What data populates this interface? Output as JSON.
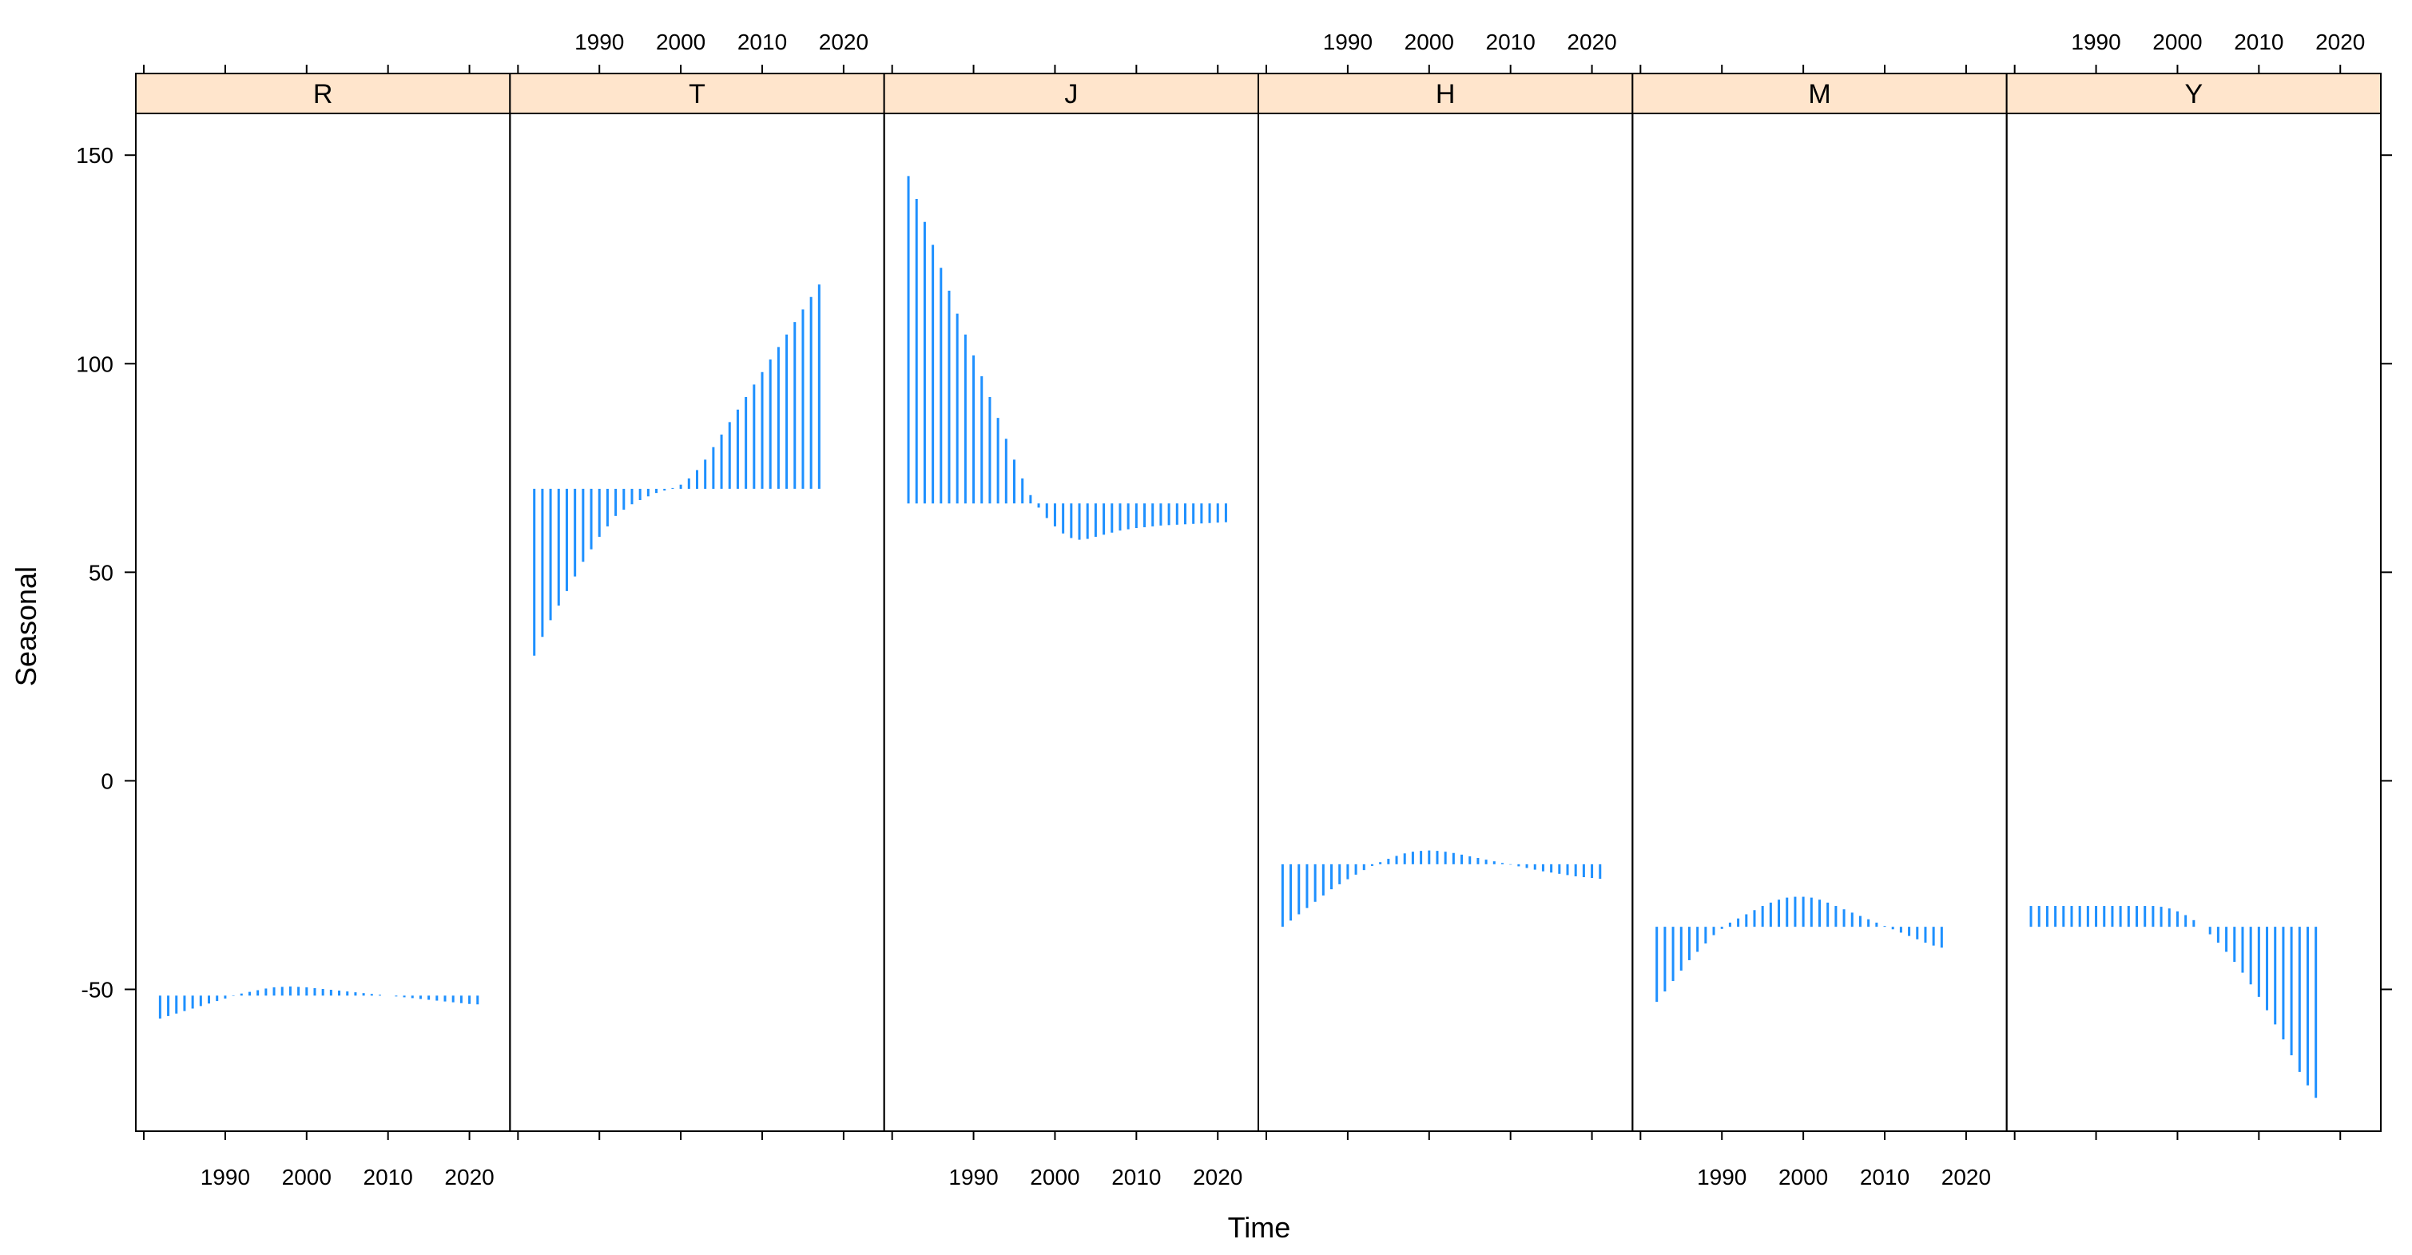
{
  "chart_data": {
    "type": "line",
    "ylabel": "Seasonal",
    "xlabel": "Time",
    "ylim": [
      -84,
      160
    ],
    "xlim": [
      1980,
      2024
    ],
    "y_ticks": [
      -50,
      0,
      50,
      100,
      150
    ],
    "x_ticks": [
      1990,
      2000,
      2010,
      2020
    ],
    "start_year": 1982,
    "panel_order": [
      "R",
      "T",
      "J",
      "H",
      "M",
      "Y"
    ],
    "strip_color": "#ffe5cc",
    "line_color": "#1e90ff",
    "panels": [
      {
        "name": "R",
        "midline": -51.5,
        "x_tick_side": "bottom",
        "values": [
          -57,
          -56.4,
          -55.8,
          -55.2,
          -54.6,
          -54,
          -53.4,
          -52.8,
          -52.2,
          -51.6,
          -51,
          -50.6,
          -50.2,
          -49.8,
          -49.5,
          -49.4,
          -49.3,
          -49.4,
          -49.5,
          -49.7,
          -49.9,
          -50.1,
          -50.3,
          -50.5,
          -50.7,
          -50.9,
          -51.1,
          -51.3,
          -51.5,
          -51.7,
          -51.9,
          -52.1,
          -52.3,
          -52.5,
          -52.7,
          -52.9,
          -53.1,
          -53.3,
          -53.5,
          -53.6
        ]
      },
      {
        "name": "T",
        "midline": 70,
        "x_tick_side": "top",
        "values": [
          30,
          34.5,
          38.5,
          42,
          45.5,
          49,
          52.5,
          55.5,
          58.5,
          61,
          63.5,
          65,
          66.3,
          67.3,
          68.2,
          69,
          69.6,
          70.2,
          71,
          72.5,
          74.5,
          77,
          80,
          83,
          86,
          89,
          92,
          95,
          98,
          101,
          104,
          107,
          110,
          113,
          116,
          119
        ]
      },
      {
        "name": "J",
        "midline": 66.5,
        "x_tick_side": "bottom",
        "values": [
          145,
          139.5,
          134,
          128.5,
          123,
          117.5,
          112,
          107,
          102,
          97,
          92,
          87,
          82,
          77,
          72.5,
          68.5,
          65.5,
          63,
          61,
          59.3,
          58.2,
          57.8,
          58,
          58.5,
          59,
          59.5,
          60,
          60.3,
          60.6,
          60.8,
          61,
          61.2,
          61.3,
          61.4,
          61.5,
          61.6,
          61.7,
          61.8,
          61.9,
          62
        ]
      },
      {
        "name": "H",
        "midline": -20,
        "x_tick_side": "top",
        "values": [
          -35,
          -33.5,
          -32,
          -30.5,
          -29,
          -27.5,
          -26,
          -24.8,
          -23.6,
          -22.5,
          -21.4,
          -20.4,
          -19.5,
          -18.7,
          -18,
          -17.4,
          -17,
          -16.8,
          -16.7,
          -16.8,
          -17,
          -17.3,
          -17.7,
          -18.1,
          -18.5,
          -18.9,
          -19.3,
          -19.7,
          -20.1,
          -20.5,
          -20.9,
          -21.3,
          -21.7,
          -22,
          -22.3,
          -22.6,
          -22.9,
          -23.1,
          -23.3,
          -23.5
        ]
      },
      {
        "name": "M",
        "midline": -35,
        "x_tick_side": "bottom",
        "values": [
          -53,
          -50.5,
          -48,
          -45.5,
          -43,
          -41,
          -39,
          -37,
          -35.5,
          -34,
          -33,
          -32,
          -31,
          -30,
          -29.2,
          -28.5,
          -28,
          -27.8,
          -27.8,
          -28,
          -28.5,
          -29.2,
          -30,
          -30.8,
          -31.6,
          -32.4,
          -33.2,
          -34,
          -34.8,
          -35.6,
          -36.4,
          -37.2,
          -38,
          -38.8,
          -39.5,
          -40
        ]
      },
      {
        "name": "Y",
        "midline": -35,
        "x_tick_side": "top",
        "values": [
          -30,
          -30,
          -30,
          -30,
          -30,
          -30,
          -30,
          -30,
          -30,
          -30,
          -30,
          -30,
          -30,
          -30,
          -30,
          -30,
          -30.2,
          -30.6,
          -31.3,
          -32.2,
          -33.4,
          -35,
          -36.8,
          -38.8,
          -41,
          -43.4,
          -46,
          -48.8,
          -51.8,
          -55,
          -58.4,
          -62,
          -65.8,
          -69.8,
          -73,
          -76
        ]
      }
    ]
  }
}
